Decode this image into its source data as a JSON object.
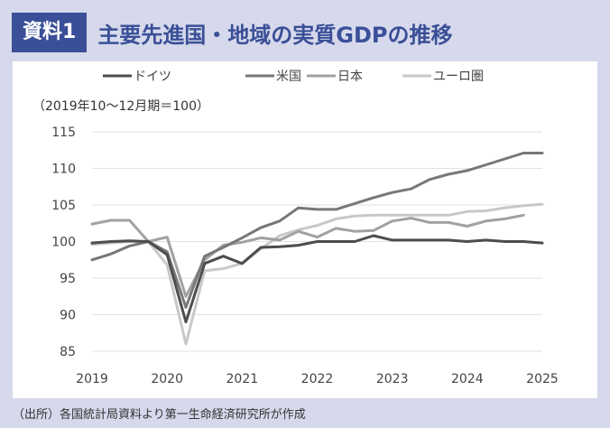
{
  "header": {
    "badge": "資料1",
    "title": "主要先進国・地域の実質GDPの推移"
  },
  "source": "（出所）各国統計局資料より第一生命経済研究所が作成",
  "chart_data": {
    "type": "line",
    "note": "（2019年10〜12月期＝100）",
    "ylim": [
      85,
      115
    ],
    "yticks": [
      85,
      90,
      95,
      100,
      105,
      110,
      115
    ],
    "xlim": [
      2019,
      2025
    ],
    "xticks": [
      2019,
      2020,
      2021,
      2022,
      2023,
      2024,
      2025
    ],
    "grid": "horizontal",
    "legend_position": "top",
    "x": [
      2019.0,
      2019.25,
      2019.5,
      2019.75,
      2020.0,
      2020.25,
      2020.5,
      2020.75,
      2021.0,
      2021.25,
      2021.5,
      2021.75,
      2022.0,
      2022.25,
      2022.5,
      2022.75,
      2023.0,
      2023.25,
      2023.5,
      2023.75,
      2024.0,
      2024.25,
      2024.5,
      2024.75,
      2025.0
    ],
    "series": [
      {
        "name": "ドイツ",
        "color": "#4d4d4d",
        "values": [
          99.8,
          100.0,
          100.1,
          100.0,
          98.2,
          89.0,
          97.0,
          98.0,
          97.0,
          99.2,
          99.3,
          99.5,
          100.0,
          100.0,
          100.0,
          100.8,
          100.2,
          100.2,
          100.2,
          100.2,
          100.0,
          100.2,
          100.0,
          100.0,
          99.8
        ]
      },
      {
        "name": "米国",
        "color": "#777777",
        "values": [
          97.5,
          98.3,
          99.4,
          100.0,
          98.6,
          91.0,
          98.0,
          99.2,
          100.5,
          101.9,
          102.8,
          104.6,
          104.4,
          104.4,
          105.2,
          106.0,
          106.7,
          107.2,
          108.5,
          109.2,
          109.7,
          110.5,
          111.3,
          112.1,
          112.1
        ]
      },
      {
        "name": "日本",
        "color": "#a1a1a1",
        "values": [
          102.4,
          102.9,
          102.9,
          100.0,
          100.6,
          92.5,
          97.5,
          99.5,
          99.9,
          100.5,
          100.2,
          101.4,
          100.6,
          101.8,
          101.4,
          101.5,
          102.8,
          103.2,
          102.6,
          102.6,
          102.1,
          102.8,
          103.1,
          103.6,
          null
        ]
      },
      {
        "name": "ユーロ圏",
        "color": "#c8c8c8",
        "values": [
          99.6,
          99.8,
          100.0,
          100.0,
          96.8,
          86.0,
          96.0,
          96.3,
          97.0,
          99.0,
          100.8,
          101.6,
          102.2,
          103.1,
          103.5,
          103.6,
          103.6,
          103.6,
          103.6,
          103.6,
          104.1,
          104.2,
          104.6,
          104.9,
          105.1
        ]
      }
    ]
  }
}
